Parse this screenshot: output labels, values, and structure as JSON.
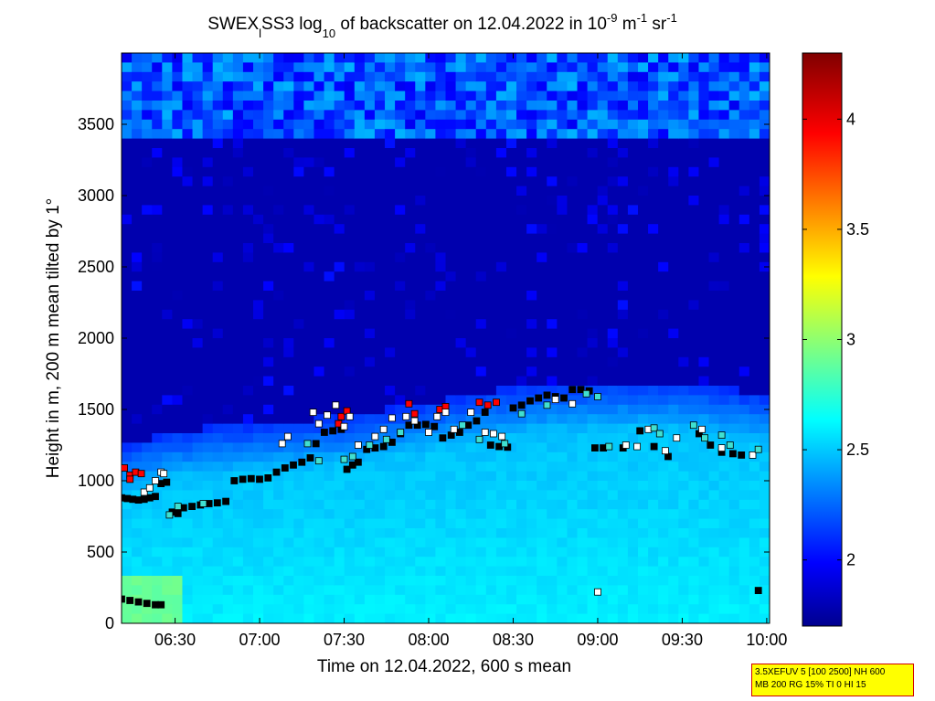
{
  "chart_data": {
    "type": "heatmap",
    "title": {
      "prefix": "SWEX",
      "sub1": "l",
      "mid": "SS3 log",
      "sub2": "10",
      "rest": " of backscatter on 12.04.2022 in 10",
      "sup1": "-9",
      "unit1": " m",
      "sup2": "-1",
      "unit2": " sr",
      "sup3": "-1"
    },
    "xlabel": "Time on 12.04.2022, 600 s mean",
    "ylabel": "Height in m, 200 m mean tilted by 1°",
    "xlim": [
      "06:11",
      "10:01"
    ],
    "ylim": [
      0,
      4000
    ],
    "x_ticks": [
      "06:30",
      "07:00",
      "07:30",
      "08:00",
      "08:30",
      "09:00",
      "09:30",
      "10:00"
    ],
    "y_ticks": [
      0,
      500,
      1000,
      1500,
      2000,
      2500,
      3000,
      3500
    ],
    "colorbar": {
      "range": [
        1.7,
        4.3
      ],
      "ticks": [
        2,
        2.5,
        3,
        3.5,
        4
      ],
      "tick_labels": [
        "2",
        "2.5",
        "3",
        "3.5",
        "4"
      ]
    },
    "field_description": {
      "boundary_layer_top_m": [
        [
          "06:11",
          1250
        ],
        [
          "06:30",
          1350
        ],
        [
          "07:00",
          1400
        ],
        [
          "07:30",
          1450
        ],
        [
          "08:00",
          1550
        ],
        [
          "08:30",
          1650
        ],
        [
          "09:00",
          1700
        ],
        [
          "09:30",
          1700
        ],
        [
          "10:00",
          1600
        ]
      ],
      "upper_cloud_layer_m": [
        3400,
        4000
      ]
    },
    "series": [
      {
        "marker": "black",
        "points": [
          [
            "06:11",
            880
          ],
          [
            "06:13",
            875
          ],
          [
            "06:15",
            870
          ],
          [
            "06:17",
            865
          ],
          [
            "06:19",
            870
          ],
          [
            "06:21",
            880
          ],
          [
            "06:23",
            890
          ],
          [
            "06:25",
            980
          ],
          [
            "06:27",
            990
          ],
          [
            "06:29",
            780
          ],
          [
            "06:31",
            770
          ],
          [
            "06:33",
            810
          ],
          [
            "06:36",
            820
          ],
          [
            "06:39",
            830
          ],
          [
            "06:42",
            840
          ],
          [
            "06:45",
            845
          ],
          [
            "06:48",
            855
          ],
          [
            "06:51",
            1000
          ],
          [
            "06:54",
            1010
          ],
          [
            "06:57",
            1015
          ],
          [
            "07:00",
            1010
          ],
          [
            "07:03",
            1020
          ],
          [
            "07:06",
            1060
          ],
          [
            "07:09",
            1090
          ],
          [
            "07:12",
            1110
          ],
          [
            "07:15",
            1130
          ],
          [
            "07:18",
            1160
          ],
          [
            "07:20",
            1260
          ],
          [
            "07:23",
            1340
          ],
          [
            "07:26",
            1350
          ],
          [
            "07:29",
            1360
          ],
          [
            "07:31",
            1080
          ],
          [
            "07:33",
            1110
          ],
          [
            "07:35",
            1130
          ],
          [
            "07:38",
            1220
          ],
          [
            "07:41",
            1230
          ],
          [
            "07:44",
            1240
          ],
          [
            "07:47",
            1270
          ],
          [
            "07:50",
            1330
          ],
          [
            "07:53",
            1390
          ],
          [
            "07:56",
            1390
          ],
          [
            "07:59",
            1395
          ],
          [
            "08:02",
            1380
          ],
          [
            "08:05",
            1300
          ],
          [
            "08:08",
            1320
          ],
          [
            "08:11",
            1340
          ],
          [
            "08:14",
            1390
          ],
          [
            "08:17",
            1420
          ],
          [
            "08:20",
            1480
          ],
          [
            "08:22",
            1250
          ],
          [
            "08:25",
            1240
          ],
          [
            "08:28",
            1235
          ],
          [
            "08:30",
            1510
          ],
          [
            "08:33",
            1530
          ],
          [
            "08:36",
            1560
          ],
          [
            "08:39",
            1580
          ],
          [
            "08:42",
            1600
          ],
          [
            "08:45",
            1590
          ],
          [
            "08:48",
            1580
          ],
          [
            "08:51",
            1640
          ],
          [
            "08:54",
            1640
          ],
          [
            "08:57",
            1630
          ],
          [
            "08:59",
            1230
          ],
          [
            "09:02",
            1230
          ],
          [
            "09:09",
            1230
          ],
          [
            "09:15",
            1350
          ],
          [
            "09:20",
            1240
          ],
          [
            "09:25",
            1170
          ],
          [
            "09:36",
            1330
          ],
          [
            "09:40",
            1250
          ],
          [
            "09:44",
            1200
          ],
          [
            "09:48",
            1190
          ],
          [
            "09:51",
            1180
          ],
          [
            "06:11",
            170
          ],
          [
            "06:14",
            160
          ],
          [
            "06:17",
            150
          ],
          [
            "06:20",
            140
          ],
          [
            "06:23",
            130
          ],
          [
            "06:25",
            130
          ],
          [
            "09:57",
            230
          ]
        ]
      },
      {
        "marker": "red",
        "points": [
          [
            "06:12",
            1090
          ],
          [
            "06:14",
            1040
          ],
          [
            "06:16",
            1060
          ],
          [
            "06:18",
            1050
          ],
          [
            "06:14",
            1010
          ],
          [
            "07:28",
            1400
          ],
          [
            "07:29",
            1450
          ],
          [
            "07:31",
            1490
          ],
          [
            "07:53",
            1540
          ],
          [
            "07:55",
            1470
          ],
          [
            "08:04",
            1500
          ],
          [
            "08:06",
            1520
          ],
          [
            "08:18",
            1550
          ],
          [
            "08:21",
            1530
          ],
          [
            "08:24",
            1550
          ]
        ]
      },
      {
        "marker": "white",
        "points": [
          [
            "06:19",
            920
          ],
          [
            "06:21",
            950
          ],
          [
            "06:23",
            1000
          ],
          [
            "06:25",
            1060
          ],
          [
            "06:26",
            1050
          ],
          [
            "07:08",
            1260
          ],
          [
            "07:10",
            1310
          ],
          [
            "07:19",
            1480
          ],
          [
            "07:21",
            1400
          ],
          [
            "07:24",
            1460
          ],
          [
            "07:27",
            1530
          ],
          [
            "07:30",
            1380
          ],
          [
            "07:32",
            1450
          ],
          [
            "07:35",
            1250
          ],
          [
            "07:41",
            1310
          ],
          [
            "07:44",
            1360
          ],
          [
            "07:47",
            1440
          ],
          [
            "07:52",
            1450
          ],
          [
            "07:55",
            1420
          ],
          [
            "08:00",
            1340
          ],
          [
            "08:03",
            1450
          ],
          [
            "08:06",
            1480
          ],
          [
            "08:09",
            1360
          ],
          [
            "08:15",
            1480
          ],
          [
            "08:20",
            1340
          ],
          [
            "08:23",
            1330
          ],
          [
            "08:26",
            1310
          ],
          [
            "08:45",
            1570
          ],
          [
            "08:51",
            1540
          ],
          [
            "09:00",
            220
          ],
          [
            "09:10",
            1250
          ],
          [
            "09:14",
            1240
          ],
          [
            "09:18",
            1360
          ],
          [
            "09:24",
            1210
          ],
          [
            "09:28",
            1300
          ],
          [
            "09:37",
            1360
          ],
          [
            "09:44",
            1230
          ],
          [
            "09:55",
            1180
          ]
        ]
      },
      {
        "marker": "cyan",
        "points": [
          [
            "06:28",
            760
          ],
          [
            "06:31",
            820
          ],
          [
            "06:40",
            840
          ],
          [
            "07:17",
            1260
          ],
          [
            "07:21",
            1140
          ],
          [
            "07:30",
            1150
          ],
          [
            "07:33",
            1170
          ],
          [
            "07:39",
            1250
          ],
          [
            "07:45",
            1290
          ],
          [
            "07:50",
            1340
          ],
          [
            "08:12",
            1390
          ],
          [
            "08:18",
            1290
          ],
          [
            "08:27",
            1260
          ],
          [
            "08:33",
            1470
          ],
          [
            "08:42",
            1530
          ],
          [
            "08:56",
            1610
          ],
          [
            "09:00",
            1590
          ],
          [
            "09:04",
            1240
          ],
          [
            "09:20",
            1370
          ],
          [
            "09:22",
            1330
          ],
          [
            "09:34",
            1390
          ],
          [
            "09:38",
            1300
          ],
          [
            "09:44",
            1320
          ],
          [
            "09:47",
            1250
          ],
          [
            "09:57",
            1220
          ]
        ]
      }
    ]
  },
  "info_box": {
    "line1": "3.5XEFUV 5 [100 2500] NH 600",
    "line2": "MB 200 RG 15% TI 0 HI 15"
  }
}
